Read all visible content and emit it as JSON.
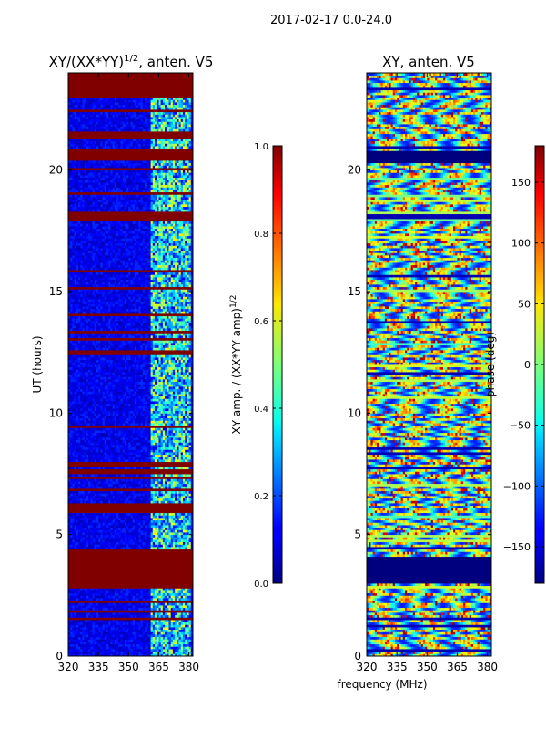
{
  "suptitle": "2017-02-17 0.0-24.0",
  "xlabel_shared": "frequency (MHz)",
  "chart_data": [
    {
      "type": "heatmap",
      "title_main": "XY/(XX*YY)",
      "title_sup": "1/2",
      "title_tail": ", anten. V5",
      "ylabel": "UT (hours)",
      "xlim": [
        320,
        382
      ],
      "ylim": [
        0,
        24
      ],
      "xticks": [
        320,
        335,
        350,
        365,
        380
      ],
      "yticks": [
        0,
        5,
        10,
        15,
        20
      ],
      "colorbar": {
        "label_main": "XY amp. / (XX*YY amp)",
        "label_sup": "1/2",
        "range": [
          0.0,
          1.0
        ],
        "ticks": [
          "0.0",
          "0.2",
          "0.4",
          "0.6",
          "0.8",
          "1.0"
        ],
        "tick_values": [
          0.0,
          0.2,
          0.4,
          0.6,
          0.8,
          1.0
        ],
        "colormap": "jet"
      },
      "saturated_bands_hours": [
        [
          2.9,
          4.2
        ],
        [
          5.95,
          6.35
        ],
        [
          7.5,
          7.75
        ],
        [
          17.9,
          18.3
        ],
        [
          20.4,
          20.9
        ],
        [
          23.0,
          24.0
        ]
      ],
      "active_freq_band_MHz": [
        361,
        381
      ]
    },
    {
      "type": "heatmap",
      "title_main": "XY, anten. V5",
      "xlim": [
        320,
        382
      ],
      "ylim": [
        0,
        24
      ],
      "xticks": [
        320,
        335,
        350,
        365,
        380
      ],
      "yticks": [
        0,
        5,
        10,
        15,
        20
      ],
      "colorbar": {
        "label_main": "phase (deg)",
        "range": [
          -180,
          180
        ],
        "ticks": [
          "−150",
          "−100",
          "−50",
          "0",
          "50",
          "100",
          "150"
        ],
        "tick_values": [
          -150,
          -100,
          -50,
          0,
          50,
          100,
          150
        ],
        "colormap": "jet"
      },
      "dark_bands_hours": [
        [
          3.0,
          4.1
        ],
        [
          20.3,
          20.8
        ]
      ]
    }
  ],
  "colors": {
    "jet_dark_red": "#800000",
    "jet_dark_blue": "#00007f"
  }
}
